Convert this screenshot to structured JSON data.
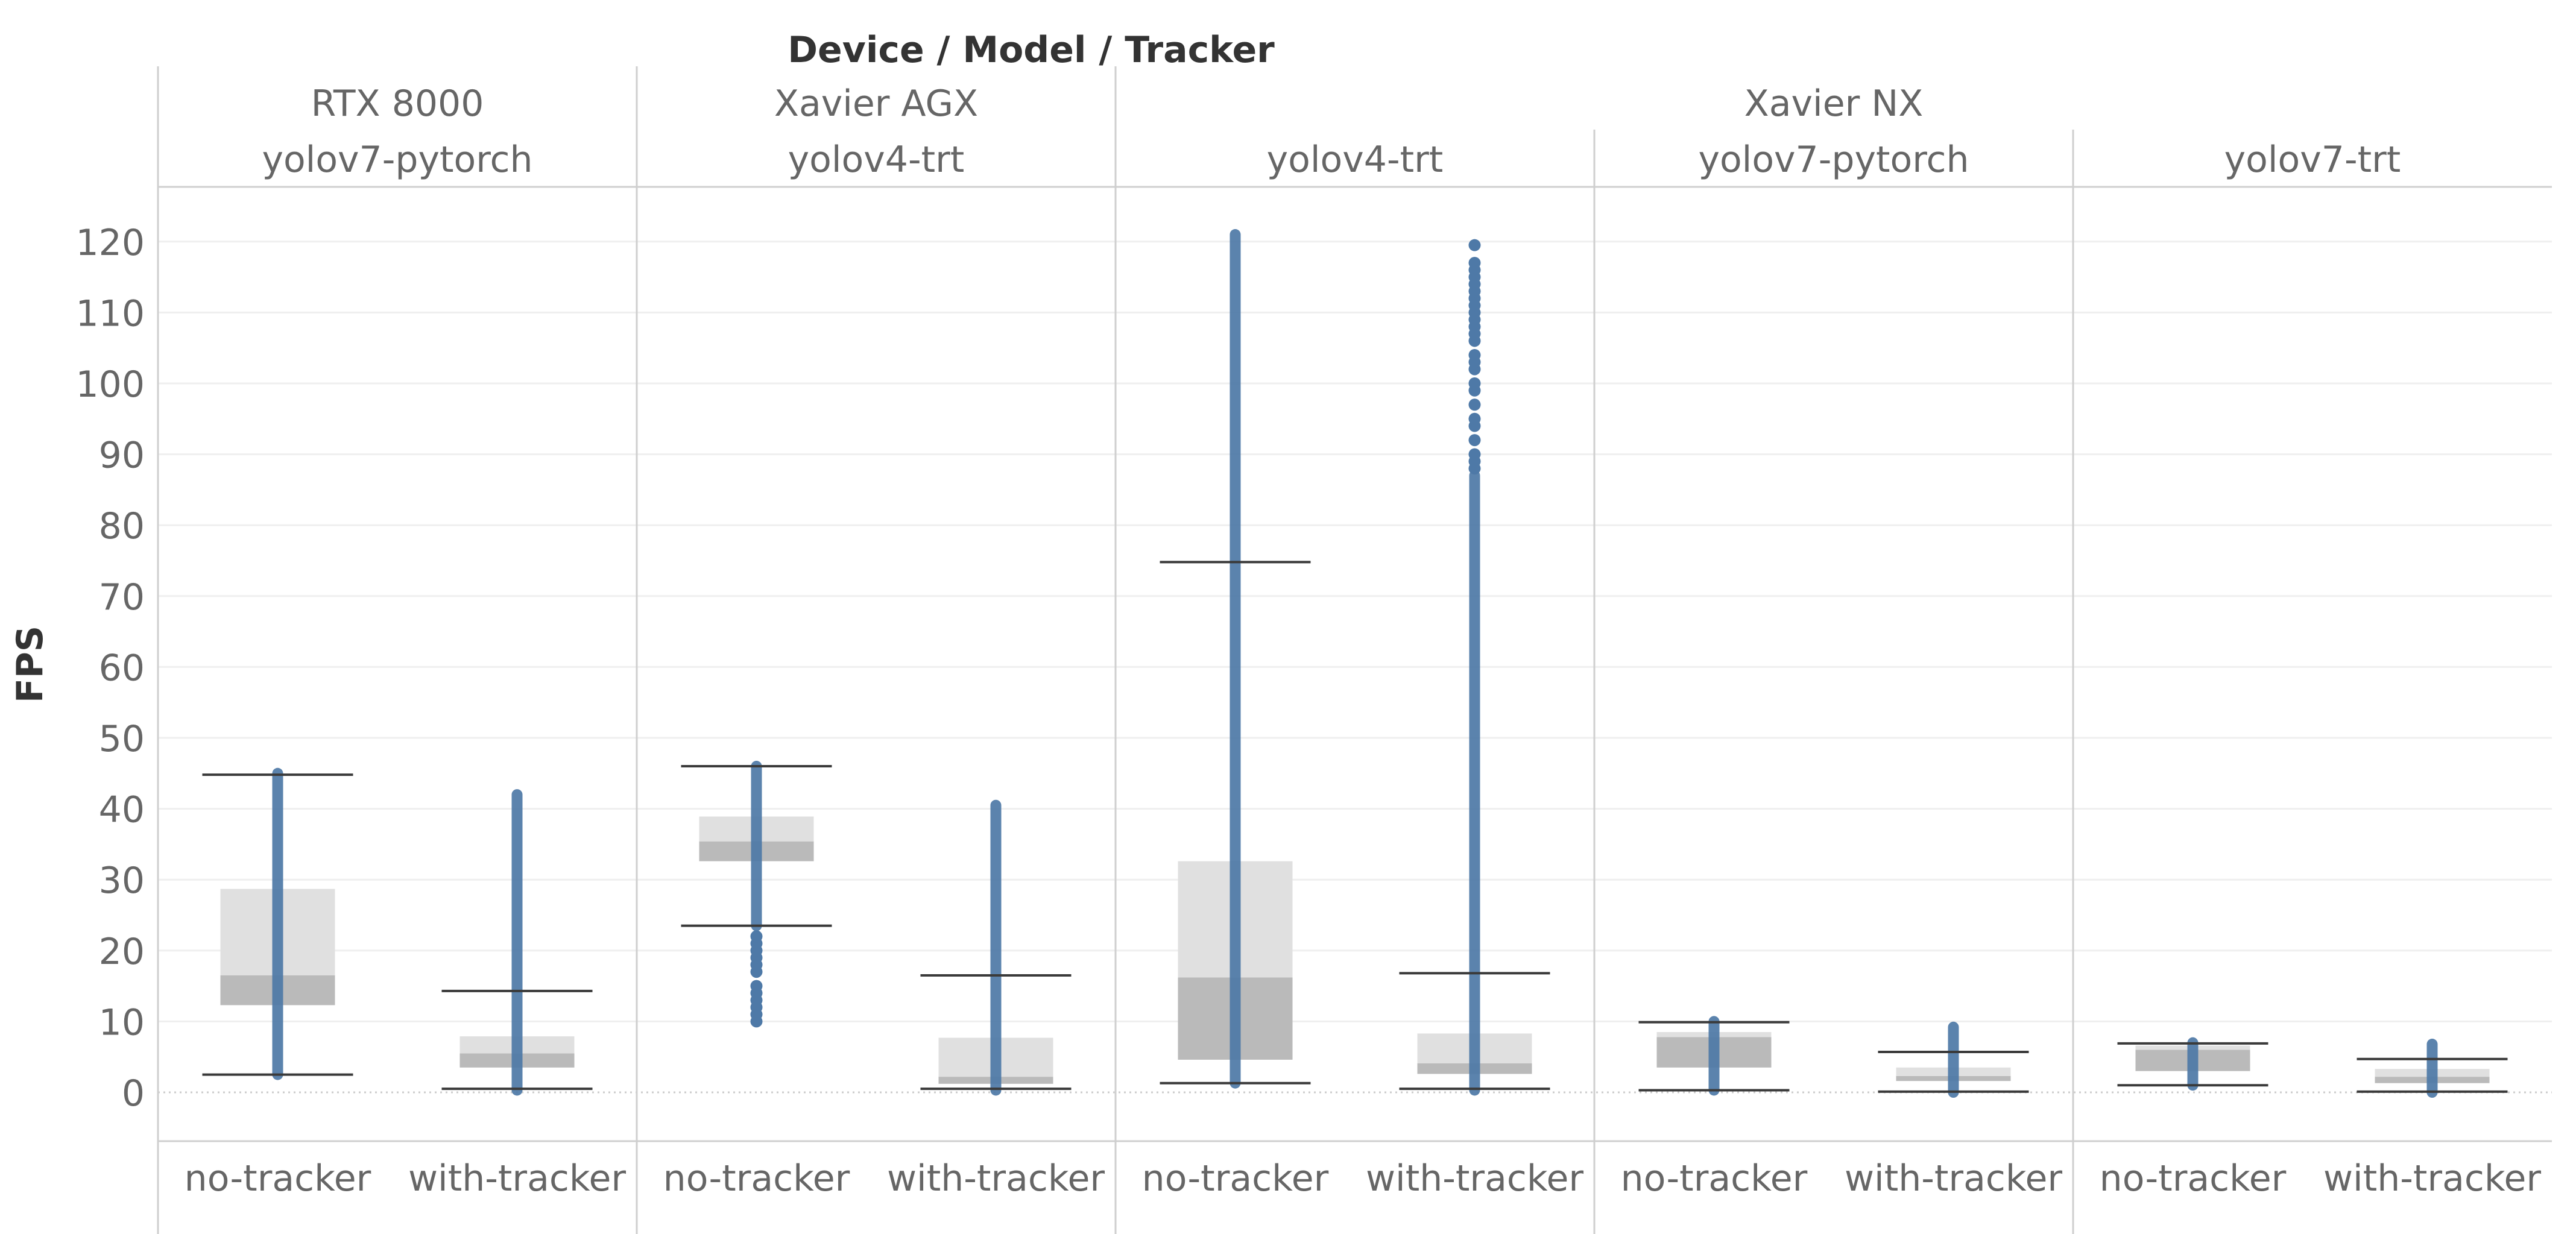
{
  "chart_data": {
    "type": "box",
    "title": "Device / Model / Tracker",
    "ylabel": "FPS",
    "ylim": [
      -7,
      123
    ],
    "yticks": [
      0,
      10,
      20,
      30,
      40,
      50,
      60,
      70,
      80,
      90,
      100,
      110,
      120
    ],
    "grid": true,
    "devices": [
      {
        "name": "RTX 8000",
        "models": [
          "yolov7-pytorch"
        ]
      },
      {
        "name": "Xavier AGX",
        "models": [
          "yolov4-trt"
        ]
      },
      {
        "name": "Xavier NX",
        "models": [
          "yolov4-trt",
          "yolov7-pytorch",
          "yolov7-trt"
        ]
      }
    ],
    "trackers": [
      "no-tracker",
      "with-tracker"
    ],
    "boxes": [
      {
        "device": "RTX 8000",
        "model": "yolov7-pytorch",
        "tracker": "no-tracker",
        "whisker_low": 2.5,
        "q1": 12.3,
        "median": 16.5,
        "q3": 28.7,
        "whisker_high": 44.8,
        "points_min": 2.5,
        "points_max": 45,
        "outliers": []
      },
      {
        "device": "RTX 8000",
        "model": "yolov7-pytorch",
        "tracker": "with-tracker",
        "whisker_low": 0.5,
        "q1": 3.5,
        "median": 5.5,
        "q3": 7.9,
        "whisker_high": 14.3,
        "points_min": 0.3,
        "points_max": 42,
        "outliers": []
      },
      {
        "device": "Xavier AGX",
        "model": "yolov4-trt",
        "tracker": "no-tracker",
        "whisker_low": 23.5,
        "q1": 32.6,
        "median": 35.4,
        "q3": 38.9,
        "whisker_high": 46,
        "points_min": 23.5,
        "points_max": 46,
        "outliers": [
          10,
          11,
          12,
          13,
          14,
          15,
          17,
          18,
          19,
          20,
          21,
          22
        ]
      },
      {
        "device": "Xavier AGX",
        "model": "yolov4-trt",
        "tracker": "with-tracker",
        "whisker_low": 0.5,
        "q1": 1.2,
        "median": 2.2,
        "q3": 7.7,
        "whisker_high": 16.5,
        "points_min": 0.3,
        "points_max": 40.5,
        "outliers": []
      },
      {
        "device": "Xavier NX",
        "model": "yolov4-trt",
        "tracker": "no-tracker",
        "whisker_low": 1.3,
        "q1": 4.6,
        "median": 16.2,
        "q3": 32.6,
        "whisker_high": 74.8,
        "points_min": 1.3,
        "points_max": 121,
        "outliers": []
      },
      {
        "device": "Xavier NX",
        "model": "yolov4-trt",
        "tracker": "with-tracker",
        "whisker_low": 0.5,
        "q1": 2.6,
        "median": 4.1,
        "q3": 8.3,
        "whisker_high": 16.8,
        "points_min": 0.3,
        "points_max": 87,
        "outliers": [
          88,
          89,
          90,
          92,
          94,
          95,
          97,
          99,
          100,
          102,
          103,
          104,
          106,
          107,
          108,
          109,
          110,
          111,
          112,
          113,
          114,
          115,
          116,
          117,
          119.5
        ]
      },
      {
        "device": "Xavier NX",
        "model": "yolov7-pytorch",
        "tracker": "no-tracker",
        "whisker_low": 0.3,
        "q1": 3.5,
        "median": 7.8,
        "q3": 8.5,
        "whisker_high": 9.9,
        "points_min": 0.3,
        "points_max": 10,
        "outliers": []
      },
      {
        "device": "Xavier NX",
        "model": "yolov7-pytorch",
        "tracker": "with-tracker",
        "whisker_low": 0.1,
        "q1": 1.6,
        "median": 2.3,
        "q3": 3.5,
        "whisker_high": 5.7,
        "points_min": 0,
        "points_max": 9.2,
        "outliers": []
      },
      {
        "device": "Xavier NX",
        "model": "yolov7-trt",
        "tracker": "no-tracker",
        "whisker_low": 1,
        "q1": 3,
        "median": 6,
        "q3": 6.6,
        "whisker_high": 6.9,
        "points_min": 1,
        "points_max": 7,
        "outliers": []
      },
      {
        "device": "Xavier NX",
        "model": "yolov7-trt",
        "tracker": "with-tracker",
        "whisker_low": 0.1,
        "q1": 1.3,
        "median": 2.2,
        "q3": 3.3,
        "whisker_high": 4.7,
        "points_min": 0,
        "points_max": 6.8,
        "outliers": []
      }
    ],
    "colors": {
      "points": "#4e79a7",
      "box_upper": "#e0e0e0",
      "box_lower": "#bababa",
      "whisker": "#3a3a3a",
      "grid": "#efefef",
      "divider": "#cfcfcf"
    }
  }
}
